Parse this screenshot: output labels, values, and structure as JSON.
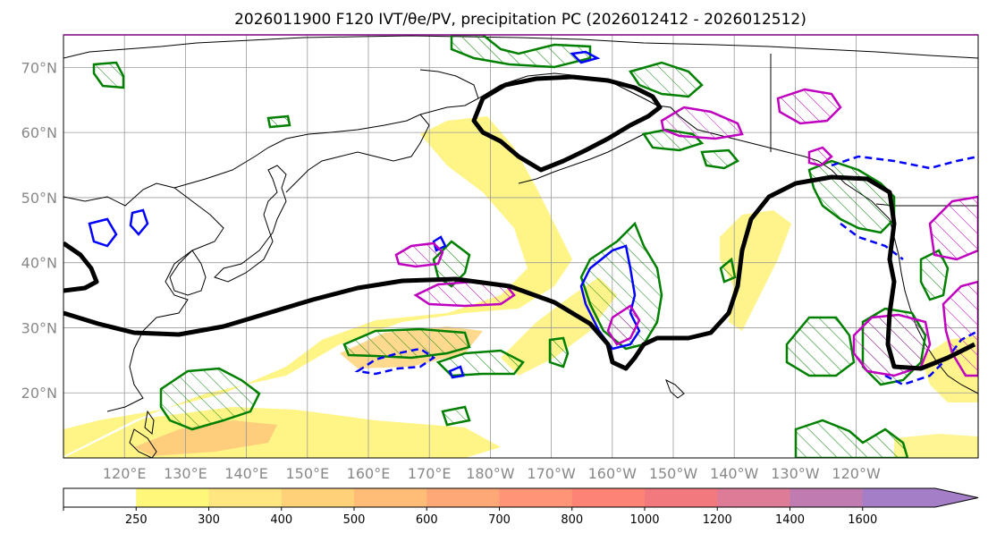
{
  "title": "2026011900 F120 IVT/θe/PV, precipitation PC (2026012412 - 2026012512)",
  "map": {
    "projection": "PlateCarree",
    "lon_range": [
      110,
      -100
    ],
    "lat_range": [
      10,
      75
    ],
    "lat_ticks": [
      {
        "lat": 70,
        "label": "70°N"
      },
      {
        "lat": 60,
        "label": "60°N"
      },
      {
        "lat": 50,
        "label": "50°N"
      },
      {
        "lat": 40,
        "label": "40°N"
      },
      {
        "lat": 30,
        "label": "30°N"
      },
      {
        "lat": 20,
        "label": "20°N"
      }
    ],
    "lon_ticks": [
      {
        "lon": 120,
        "label": "120°E"
      },
      {
        "lon": 130,
        "label": "130°E"
      },
      {
        "lon": 140,
        "label": "140°E"
      },
      {
        "lon": 150,
        "label": "150°E"
      },
      {
        "lon": 160,
        "label": "160°E"
      },
      {
        "lon": 170,
        "label": "170°E"
      },
      {
        "lon": 180,
        "label": "180°W"
      },
      {
        "lon": 190,
        "label": "170°W"
      },
      {
        "lon": 200,
        "label": "160°W"
      },
      {
        "lon": 210,
        "label": "150°W"
      },
      {
        "lon": 220,
        "label": "140°W"
      },
      {
        "lon": 230,
        "label": "130°W"
      },
      {
        "lon": 240,
        "label": "120°W"
      }
    ],
    "layers": {
      "ivt_shading": "IVT (yellow-orange filled contours)",
      "theta_e": "θe (black thick contour)",
      "pv": "PV (magenta hatched contours)",
      "precip_pc_positive": "precipitation PC (green hatched contours)",
      "precip_pc_negative": "precipitation PC (blue solid/dashed contours)"
    }
  },
  "colorbar": {
    "levels": [
      250,
      300,
      400,
      500,
      600,
      700,
      800,
      1000,
      1200,
      1400,
      1600
    ],
    "labels": [
      "250",
      "300",
      "400",
      "500",
      "600",
      "700",
      "800",
      "1000",
      "1200",
      "1400",
      "1600"
    ],
    "colors": [
      "#ffffff",
      "#fff77a",
      "#ffe680",
      "#ffd27a",
      "#ffbd78",
      "#ffa877",
      "#ff9477",
      "#fd8376",
      "#f27a7f",
      "#de7b96",
      "#c07cb1",
      "#a47ec6"
    ],
    "extend": "max"
  },
  "colors": {
    "theta_e": "#000000",
    "pv": "#bf00bf",
    "precip_pos": "#008000",
    "precip_neg": "#0000ff",
    "grid": "#9a9a9a",
    "tick_label": "#888888"
  }
}
